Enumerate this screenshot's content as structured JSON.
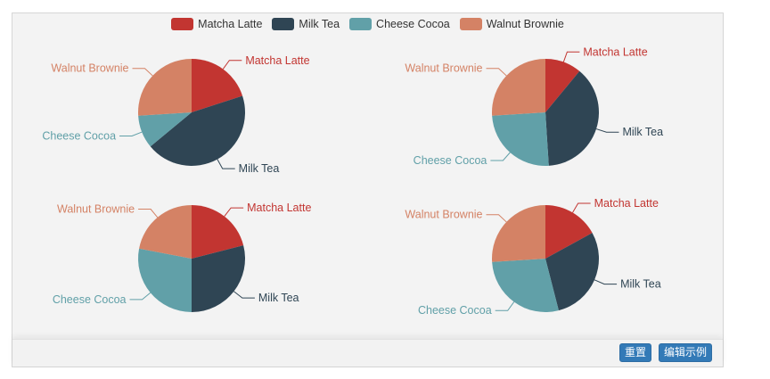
{
  "legend": [
    {
      "name": "Matcha Latte",
      "color": "#c23531"
    },
    {
      "name": "Milk Tea",
      "color": "#2f4554"
    },
    {
      "name": "Cheese Cocoa",
      "color": "#61a0a8"
    },
    {
      "name": "Walnut Brownie",
      "color": "#d48265"
    }
  ],
  "chart_data": [
    {
      "type": "pie",
      "categories": [
        "Matcha Latte",
        "Milk Tea",
        "Cheese Cocoa",
        "Walnut Brownie"
      ],
      "values": [
        20,
        44,
        10,
        26
      ]
    },
    {
      "type": "pie",
      "categories": [
        "Matcha Latte",
        "Milk Tea",
        "Cheese Cocoa",
        "Walnut Brownie"
      ],
      "values": [
        11,
        38,
        25,
        26
      ]
    },
    {
      "type": "pie",
      "categories": [
        "Matcha Latte",
        "Milk Tea",
        "Cheese Cocoa",
        "Walnut Brownie"
      ],
      "values": [
        21,
        29,
        28,
        22
      ]
    },
    {
      "type": "pie",
      "categories": [
        "Matcha Latte",
        "Milk Tea",
        "Cheese Cocoa",
        "Walnut Brownie"
      ],
      "values": [
        17,
        29,
        28,
        26
      ]
    }
  ],
  "toolbar": {
    "reset_label": "重置",
    "edit_label": "编辑示例"
  }
}
